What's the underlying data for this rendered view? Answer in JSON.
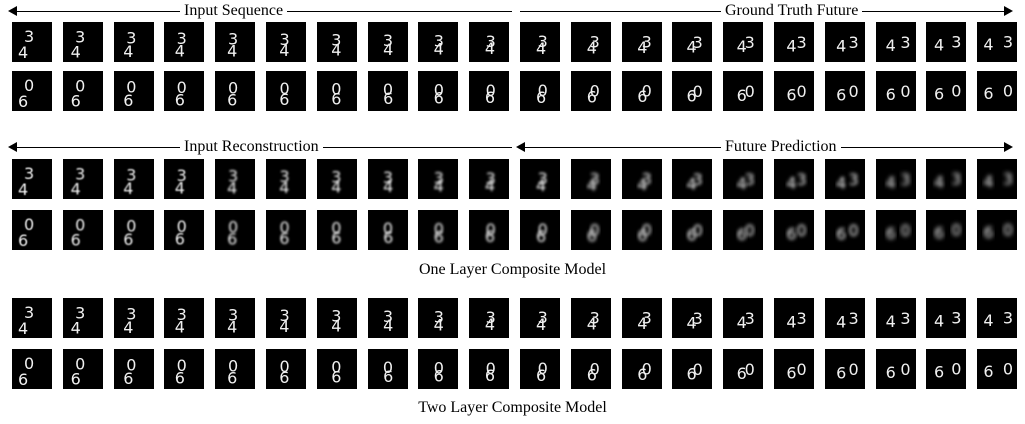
{
  "sections": [
    {
      "header_left": "Input Sequence",
      "header_right": "Ground Truth Future",
      "caption": ""
    },
    {
      "header_left": "Input Reconstruction",
      "header_right": "Future Prediction",
      "caption": "One Layer Composite Model"
    },
    {
      "header_left": "",
      "header_right": "",
      "caption": "Two Layer Composite Model"
    }
  ],
  "rows": [
    {
      "digits": [
        "4",
        "3"
      ],
      "style": "sharp"
    },
    {
      "digits": [
        "6",
        "0"
      ],
      "style": "sharp"
    },
    {
      "digits": [
        "4",
        "3"
      ],
      "style": "blurry"
    },
    {
      "digits": [
        "6",
        "0"
      ],
      "style": "blurry"
    },
    {
      "digits": [
        "4",
        "3"
      ],
      "style": "sharp"
    },
    {
      "digits": [
        "6",
        "0"
      ],
      "style": "sharp"
    }
  ],
  "frame_count": 20,
  "colors": {
    "background": "#ffffff",
    "frame": "#000000",
    "digit": "#f0f0f0"
  }
}
